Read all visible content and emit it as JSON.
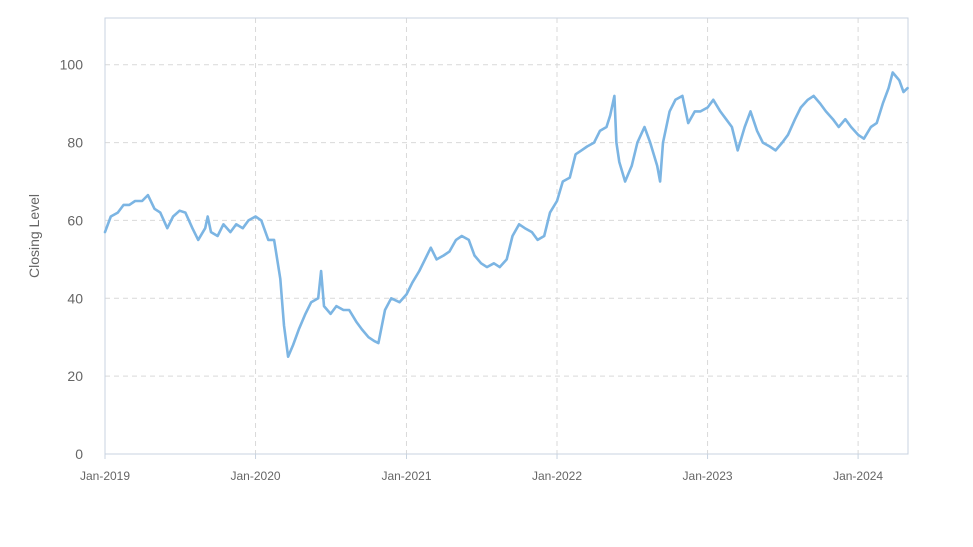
{
  "chart_data": {
    "type": "line",
    "ylabel": "Closing Level",
    "ylim": [
      0,
      112
    ],
    "xlim": [
      "2019-01-01",
      "2024-05-01"
    ],
    "yticks": [
      "0",
      "20",
      "40",
      "60",
      "80",
      "100"
    ],
    "xticks": [
      "Jan-2019",
      "Jan-2020",
      "Jan-2021",
      "Jan-2022",
      "Jan-2023",
      "Jan-2024"
    ],
    "grid": true,
    "line_color": "#7cb5e3",
    "series": [
      {
        "points": [
          [
            "2019-01-01",
            57
          ],
          [
            "2019-01-15",
            61
          ],
          [
            "2019-02-01",
            62
          ],
          [
            "2019-02-15",
            64
          ],
          [
            "2019-03-01",
            64
          ],
          [
            "2019-03-15",
            65
          ],
          [
            "2019-04-01",
            65
          ],
          [
            "2019-04-15",
            66.5
          ],
          [
            "2019-05-01",
            63
          ],
          [
            "2019-05-15",
            62
          ],
          [
            "2019-06-01",
            58
          ],
          [
            "2019-06-15",
            61
          ],
          [
            "2019-07-01",
            62.5
          ],
          [
            "2019-07-15",
            62
          ],
          [
            "2019-08-01",
            58
          ],
          [
            "2019-08-15",
            55
          ],
          [
            "2019-09-01",
            58
          ],
          [
            "2019-09-07",
            61
          ],
          [
            "2019-09-15",
            57
          ],
          [
            "2019-10-01",
            56
          ],
          [
            "2019-10-15",
            59
          ],
          [
            "2019-11-01",
            57
          ],
          [
            "2019-11-15",
            59
          ],
          [
            "2019-12-01",
            58
          ],
          [
            "2019-12-15",
            60
          ],
          [
            "2020-01-01",
            61
          ],
          [
            "2020-01-15",
            60
          ],
          [
            "2020-02-01",
            55
          ],
          [
            "2020-02-15",
            55
          ],
          [
            "2020-03-01",
            45
          ],
          [
            "2020-03-10",
            33
          ],
          [
            "2020-03-20",
            25
          ],
          [
            "2020-04-01",
            28
          ],
          [
            "2020-04-15",
            32
          ],
          [
            "2020-05-01",
            36
          ],
          [
            "2020-05-15",
            39
          ],
          [
            "2020-06-01",
            40
          ],
          [
            "2020-06-08",
            47
          ],
          [
            "2020-06-15",
            38
          ],
          [
            "2020-07-01",
            36
          ],
          [
            "2020-07-15",
            38
          ],
          [
            "2020-08-01",
            37
          ],
          [
            "2020-08-15",
            37
          ],
          [
            "2020-09-01",
            34
          ],
          [
            "2020-09-15",
            32
          ],
          [
            "2020-10-01",
            30
          ],
          [
            "2020-10-15",
            29
          ],
          [
            "2020-10-25",
            28.5
          ],
          [
            "2020-11-10",
            37
          ],
          [
            "2020-11-25",
            40
          ],
          [
            "2020-12-15",
            39
          ],
          [
            "2021-01-01",
            41
          ],
          [
            "2021-01-15",
            44
          ],
          [
            "2021-02-01",
            47
          ],
          [
            "2021-02-15",
            50
          ],
          [
            "2021-03-01",
            53
          ],
          [
            "2021-03-15",
            50
          ],
          [
            "2021-04-01",
            51
          ],
          [
            "2021-04-15",
            52
          ],
          [
            "2021-05-01",
            55
          ],
          [
            "2021-05-15",
            56
          ],
          [
            "2021-06-01",
            55
          ],
          [
            "2021-06-15",
            51
          ],
          [
            "2021-07-01",
            49
          ],
          [
            "2021-07-15",
            48
          ],
          [
            "2021-08-01",
            49
          ],
          [
            "2021-08-15",
            48
          ],
          [
            "2021-09-01",
            50
          ],
          [
            "2021-09-15",
            56
          ],
          [
            "2021-10-01",
            59
          ],
          [
            "2021-10-15",
            58
          ],
          [
            "2021-11-01",
            57
          ],
          [
            "2021-11-15",
            55
          ],
          [
            "2021-12-01",
            56
          ],
          [
            "2021-12-15",
            62
          ],
          [
            "2022-01-01",
            65
          ],
          [
            "2022-01-15",
            70
          ],
          [
            "2022-02-01",
            71
          ],
          [
            "2022-02-15",
            77
          ],
          [
            "2022-03-01",
            78
          ],
          [
            "2022-03-15",
            79
          ],
          [
            "2022-04-01",
            80
          ],
          [
            "2022-04-15",
            83
          ],
          [
            "2022-05-01",
            84
          ],
          [
            "2022-05-10",
            87
          ],
          [
            "2022-05-20",
            92
          ],
          [
            "2022-05-25",
            80
          ],
          [
            "2022-06-01",
            75
          ],
          [
            "2022-06-15",
            70
          ],
          [
            "2022-07-01",
            74
          ],
          [
            "2022-07-15",
            80
          ],
          [
            "2022-08-01",
            84
          ],
          [
            "2022-08-15",
            80
          ],
          [
            "2022-09-01",
            74
          ],
          [
            "2022-09-08",
            70
          ],
          [
            "2022-09-15",
            80
          ],
          [
            "2022-10-01",
            88
          ],
          [
            "2022-10-15",
            91
          ],
          [
            "2022-11-01",
            92
          ],
          [
            "2022-11-15",
            85
          ],
          [
            "2022-12-01",
            88
          ],
          [
            "2022-12-15",
            88
          ],
          [
            "2023-01-01",
            89
          ],
          [
            "2023-01-15",
            91
          ],
          [
            "2023-02-01",
            88
          ],
          [
            "2023-02-15",
            86
          ],
          [
            "2023-03-01",
            84
          ],
          [
            "2023-03-15",
            78
          ],
          [
            "2023-04-01",
            84
          ],
          [
            "2023-04-15",
            88
          ],
          [
            "2023-05-01",
            83
          ],
          [
            "2023-05-15",
            80
          ],
          [
            "2023-06-01",
            79
          ],
          [
            "2023-06-15",
            78
          ],
          [
            "2023-07-01",
            80
          ],
          [
            "2023-07-15",
            82
          ],
          [
            "2023-08-01",
            86
          ],
          [
            "2023-08-15",
            89
          ],
          [
            "2023-09-01",
            91
          ],
          [
            "2023-09-15",
            92
          ],
          [
            "2023-10-01",
            90
          ],
          [
            "2023-10-15",
            88
          ],
          [
            "2023-11-01",
            86
          ],
          [
            "2023-11-15",
            84
          ],
          [
            "2023-12-01",
            86
          ],
          [
            "2023-12-15",
            84
          ],
          [
            "2024-01-01",
            82
          ],
          [
            "2024-01-15",
            81
          ],
          [
            "2024-02-01",
            84
          ],
          [
            "2024-02-15",
            85
          ],
          [
            "2024-03-01",
            90
          ],
          [
            "2024-03-15",
            94
          ],
          [
            "2024-03-25",
            98
          ],
          [
            "2024-04-10",
            96
          ],
          [
            "2024-04-20",
            93
          ],
          [
            "2024-04-30",
            94
          ]
        ]
      }
    ]
  }
}
